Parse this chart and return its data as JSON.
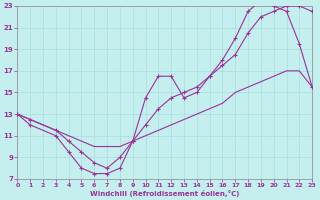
{
  "xlabel": "Windchill (Refroidissement éolien,°C)",
  "xlim": [
    0,
    23
  ],
  "ylim": [
    7,
    23
  ],
  "xticks": [
    0,
    1,
    2,
    3,
    4,
    5,
    6,
    7,
    8,
    9,
    10,
    11,
    12,
    13,
    14,
    15,
    16,
    17,
    18,
    19,
    20,
    21,
    22,
    23
  ],
  "yticks": [
    7,
    9,
    11,
    13,
    15,
    17,
    19,
    21,
    23
  ],
  "bg_color": "#c5eeee",
  "grid_color": "#a8dddd",
  "line_color": "#993399",
  "line1_x": [
    0,
    1,
    3,
    4,
    5,
    6,
    7,
    8,
    9,
    10,
    11,
    12,
    13,
    14,
    15,
    16,
    17,
    18,
    19,
    20,
    21,
    22,
    23
  ],
  "line1_y": [
    13,
    12,
    11,
    9.5,
    8,
    7.5,
    7.5,
    8.0,
    10.5,
    14.5,
    16.5,
    16.5,
    14.5,
    15.0,
    16.5,
    18,
    20,
    22.5,
    23.5,
    23.0,
    22.5,
    19.5,
    15.5
  ],
  "line2_x": [
    0,
    1,
    3,
    4,
    5,
    6,
    7,
    8,
    9,
    10,
    11,
    12,
    13,
    14,
    15,
    16,
    17,
    18,
    19,
    20,
    21,
    22,
    23
  ],
  "line2_y": [
    13,
    12.5,
    11.5,
    10.5,
    9.5,
    8.5,
    8.0,
    9.0,
    10.5,
    12.0,
    13.5,
    14.5,
    15.0,
    15.5,
    16.5,
    17.5,
    18.5,
    20.5,
    22.0,
    22.5,
    23.0,
    23.0,
    22.5
  ],
  "line3_x": [
    0,
    1,
    2,
    3,
    4,
    5,
    6,
    7,
    8,
    9,
    10,
    11,
    12,
    13,
    14,
    15,
    16,
    17,
    18,
    19,
    20,
    21,
    22,
    23
  ],
  "line3_y": [
    13,
    12.5,
    12.0,
    11.5,
    11.0,
    10.5,
    10.0,
    10.0,
    10.0,
    10.5,
    11.0,
    11.5,
    12.0,
    12.5,
    13.0,
    13.5,
    14.0,
    15.0,
    15.5,
    16.0,
    16.5,
    17.0,
    17.0,
    15.5
  ],
  "line1_markers": true,
  "line2_markers": true,
  "line3_markers": false
}
